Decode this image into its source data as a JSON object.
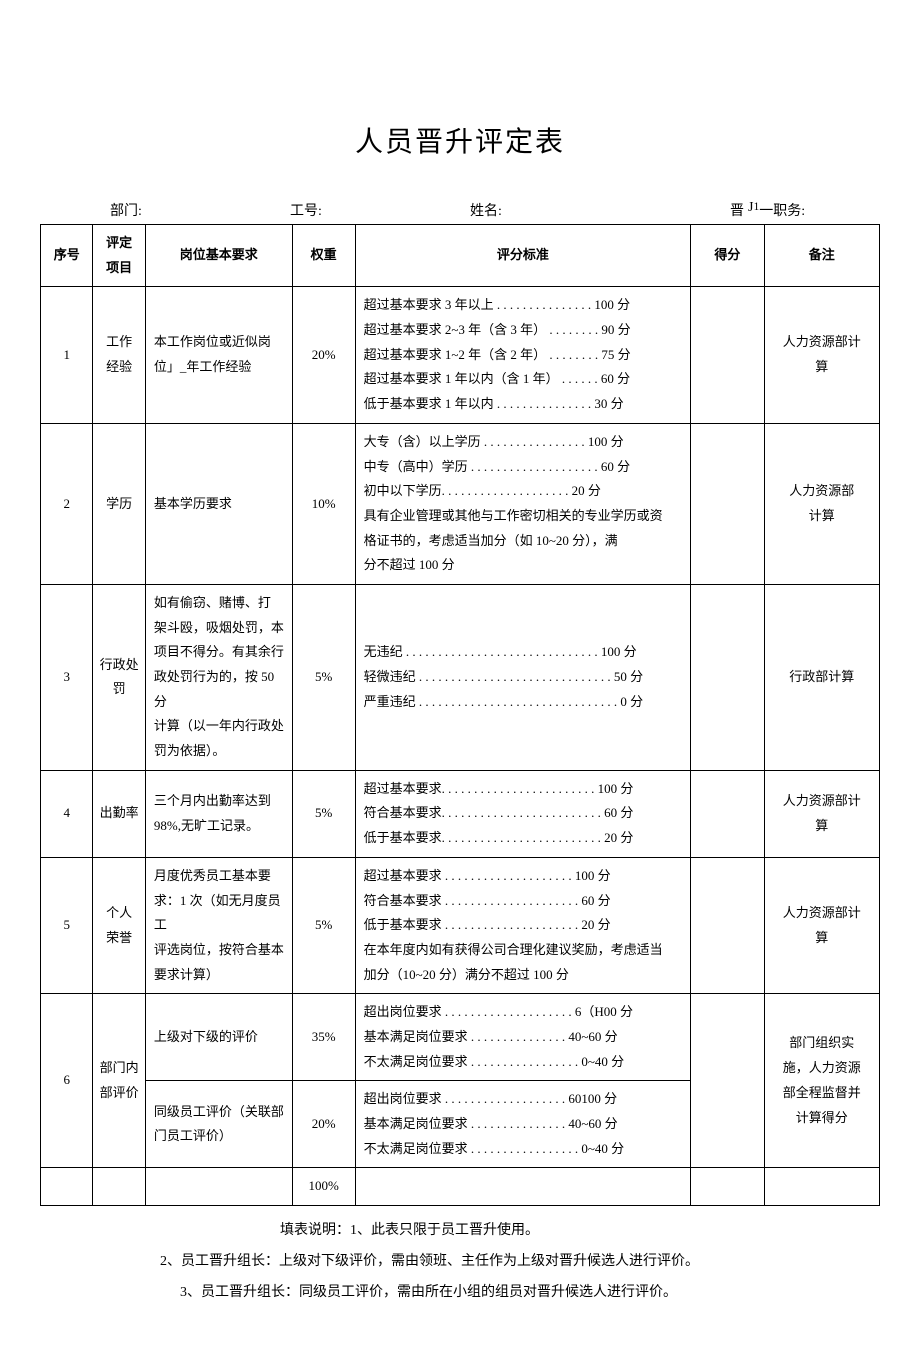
{
  "title": "人员晋升评定表",
  "header": {
    "dept_label": "部门:",
    "id_label": "工号:",
    "name_label": "姓名:",
    "promo_label": "晋",
    "promo_mid": "J",
    "promo_sup": "1",
    "promo_tail": "一职务:"
  },
  "columns": {
    "c1": "序号",
    "c2": "评定\n项目",
    "c3": "岗位基本要求",
    "c4": "权重",
    "c5": "评分标准",
    "c6": "得分",
    "c7": "备注"
  },
  "col_widths": {
    "c1": "50",
    "c2": "50",
    "c3": "140",
    "c4": "60",
    "c5": "320",
    "c6": "70",
    "c7": "110"
  },
  "rows": [
    {
      "no": "1",
      "item": "工作\n经验",
      "req": "本工作岗位或近似岗\n位」_年工作经验",
      "weight": "20%",
      "criteria": [
        "超过基本要求 3 年以上 . . . . . . . . . . . . . . . 100 分",
        "超过基本要求 2~3 年（含 3 年） . . . . . . . . 90 分",
        "超过基本要求 1~2 年（含 2 年） . . . . . . . . 75 分",
        "超过基本要求 1 年以内（含 1 年） . . . . . . 60 分",
        "低于基本要求 1 年以内 . . . . . . . . . . . . . . . 30 分"
      ],
      "score": "",
      "remark": "人力资源部计\n算"
    },
    {
      "no": "2",
      "item": "学历",
      "req": "基本学历要求",
      "weight": "10%",
      "criteria": [
        "大专（含）以上学历 . . . . . . . . . . . . . . . . 100 分",
        "中专（高中）学历 . . . . . . . . . . . . . . . . . . . . 60 分",
        "初中以下学历. . . . . . . . . . . . . . . . . . . . 20 分",
        "具有企业管理或其他与工作密切相关的专业学历或资",
        "格证书的，考虑适当加分（如 10~20 分），满",
        "分不超过 100 分"
      ],
      "score": "",
      "remark": "人力资源部\n计算"
    },
    {
      "no": "3",
      "item": "行政处\n罚",
      "req": "如有偷窃、赌博、打\n架斗殴，吸烟处罚，本\n项目不得分。有其余行\n政处罚行为的，按 50 分\n计算（以一年内行政处\n罚为依据）。",
      "weight": "5%",
      "criteria": [
        "无违纪 . . . . . . . . . . . . . . . . . . . . . . . . . . . . . . 100 分",
        "轻微违纪 . . . . . . . . . . . . . . . . . . . . . . . . . . . . . . 50 分",
        "严重违纪 . . . . . . . . . . . . . . . . . . . . . . . . . . . . . . . 0 分"
      ],
      "score": "",
      "remark": "行政部计算"
    },
    {
      "no": "4",
      "item": "出勤率",
      "req": "三个月内出勤率达到\n98%,无旷工记录。",
      "weight": "5%",
      "criteria": [
        "超过基本要求. . . . . . . . . . . . . . . . . . . . . . . . 100 分",
        "符合基本要求. . . . . . . . . . . . . . . . . . . . . . . . . 60 分",
        "低于基本要求. . . . . . . . . . . . . . . . . . . . . . . . . 20 分"
      ],
      "score": "",
      "remark": "人力资源部计\n算"
    },
    {
      "no": "5",
      "item": "个人\n荣誉",
      "req": "月度优秀员工基本要\n求：1 次（如无月度员工\n评选岗位，按符合基本\n要求计算）",
      "weight": "5%",
      "criteria": [
        "超过基本要求 . . . . . . . . . . . . . . . . . . . . 100 分",
        "符合基本要求 . . . . . . . . . . . . . . . . . . . . . 60 分",
        "低于基本要求 . . . . . . . . . . . . . . . . . . . . . 20 分",
        "在本年度内如有获得公司合理化建议奖励，考虑适当",
        "加分（10~20 分）满分不超过 100 分"
      ],
      "score": "",
      "remark": "人力资源部计\n算"
    }
  ],
  "row6": {
    "no": "6",
    "item": "部门内\n部评价",
    "sub1_req": "上级对下级的评价",
    "sub1_weight": "35%",
    "sub1_criteria": [
      "超出岗位要求 . . . . . . . . . . . . . . . . . . . . 6（H00 分",
      "基本满足岗位要求 . . . . . . . . . . . . . . . 40~60 分",
      "不太满足岗位要求 . . . . . . . . . . . . . . . . . 0~40 分"
    ],
    "sub2_req": "同级员工评价（关联部\n门员工评价）",
    "sub2_weight": "20%",
    "sub2_criteria": [
      "超出岗位要求 . . . . . . . . . . . . . . . . . . . 60100 分",
      "基本满足岗位要求 . . . . . . . . . . . . . . . 40~60 分",
      "不太满足岗位要求 . . . . . . . . . . . . . . . . . 0~40 分"
    ],
    "remark": "部门组织实\n施，人力资源\n部全程监督并\n计算得分"
  },
  "total_weight": "100%",
  "notes": {
    "n1": "填表说明：1、此表只限于员工晋升使用。",
    "n2": "2、员工晋升组长：上级对下级评价，需由领班、主任作为上级对晋升候选人进行评价。",
    "n3": "3、员工晋升组长：同级员工评价，需由所在小组的组员对晋升候选人进行评价。"
  }
}
